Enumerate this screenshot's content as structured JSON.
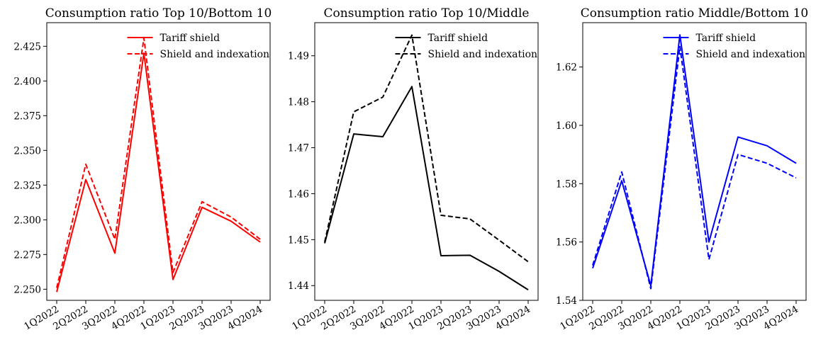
{
  "chart_data": [
    {
      "type": "line",
      "title": "Consumption ratio Top 10/Bottom 10",
      "color": "#ff0000",
      "categories": [
        "1Q2022",
        "2Q2022",
        "3Q2022",
        "4Q2022",
        "1Q2023",
        "2Q2023",
        "3Q2023",
        "4Q2024"
      ],
      "ylim": [
        2.242,
        2.442
      ],
      "yticks": [
        "2.250",
        "2.275",
        "2.300",
        "2.325",
        "2.350",
        "2.375",
        "2.400",
        "2.425"
      ],
      "legend_position": "upper-center",
      "series": [
        {
          "name": "Tariff shield",
          "line_style": "solid",
          "values": [
            2.248,
            2.329,
            2.276,
            2.42,
            2.257,
            2.309,
            2.299,
            2.284
          ]
        },
        {
          "name": "Shield and indexation",
          "line_style": "dashed",
          "values": [
            2.251,
            2.34,
            2.286,
            2.431,
            2.262,
            2.313,
            2.302,
            2.286
          ]
        }
      ]
    },
    {
      "type": "line",
      "title": "Consumption ratio Top 10/Middle",
      "color": "#000000",
      "categories": [
        "1Q2022",
        "2Q2022",
        "3Q2022",
        "4Q2022",
        "1Q2023",
        "2Q2023",
        "3Q2023",
        "4Q2024"
      ],
      "ylim": [
        1.4368,
        1.4972
      ],
      "yticks": [
        "1.44",
        "1.45",
        "1.46",
        "1.47",
        "1.48",
        "1.49"
      ],
      "legend_position": "upper-center",
      "series": [
        {
          "name": "Tariff shield",
          "line_style": "solid",
          "values": [
            1.4492,
            1.473,
            1.4724,
            1.4833,
            1.4465,
            1.4466,
            1.4431,
            1.4391
          ]
        },
        {
          "name": "Shield and indexation",
          "line_style": "dashed",
          "values": [
            1.4495,
            1.4778,
            1.481,
            1.4945,
            1.4553,
            1.4545,
            1.4499,
            1.4452
          ]
        }
      ]
    },
    {
      "type": "line",
      "title": "Consumption ratio Middle/Bottom 10",
      "color": "#0000ff",
      "categories": [
        "1Q2022",
        "2Q2022",
        "3Q2022",
        "4Q2022",
        "1Q2023",
        "2Q2023",
        "3Q2023",
        "4Q2024"
      ],
      "ylim": [
        1.54,
        1.6352
      ],
      "yticks": [
        "1.54",
        "1.56",
        "1.58",
        "1.60",
        "1.62"
      ],
      "legend_position": "upper-center",
      "series": [
        {
          "name": "Tariff shield",
          "line_style": "solid",
          "values": [
            1.551,
            1.581,
            1.545,
            1.631,
            1.56,
            1.596,
            1.593,
            1.587
          ]
        },
        {
          "name": "Shield and indexation",
          "line_style": "dashed",
          "values": [
            1.552,
            1.584,
            1.544,
            1.627,
            1.554,
            1.59,
            1.587,
            1.582
          ]
        }
      ]
    }
  ]
}
